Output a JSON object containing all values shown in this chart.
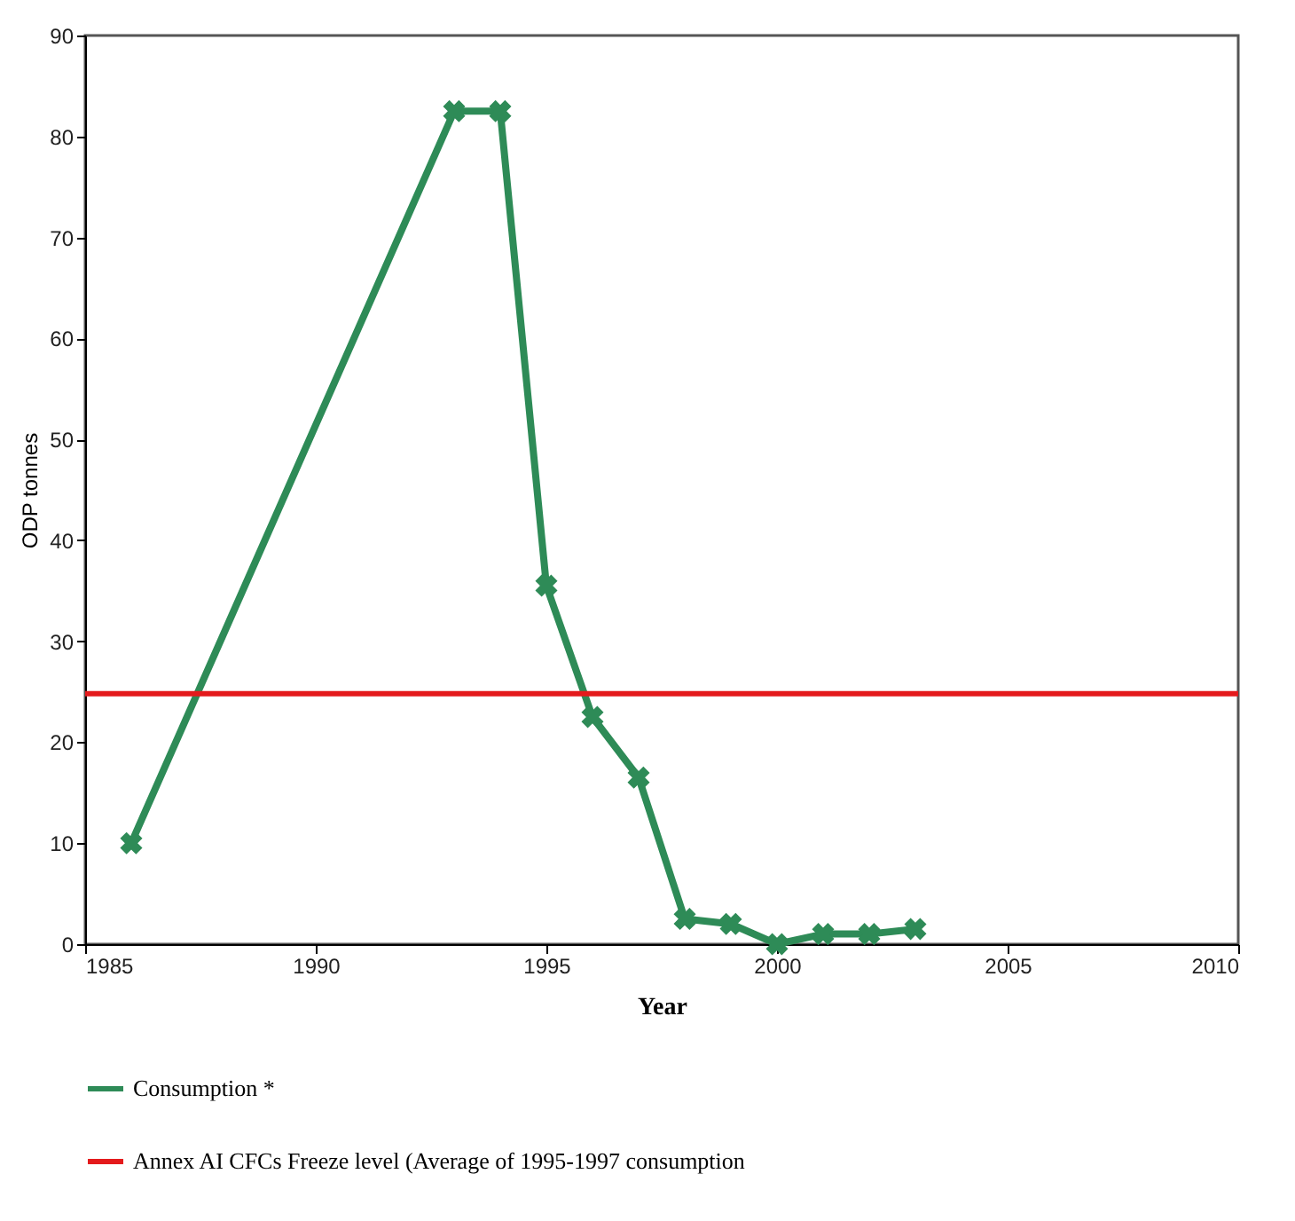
{
  "chart_data": {
    "type": "line",
    "xlabel": "Year",
    "ylabel": "ODP tonnes",
    "x": [
      1986,
      1993,
      1994,
      1995,
      1996,
      1997,
      1998,
      1999,
      2000,
      2001,
      2002,
      2003
    ],
    "series": [
      {
        "name": "Consumption *",
        "color": "#2e8b57",
        "values": [
          10,
          82.5,
          82.5,
          35.5,
          22.5,
          16.5,
          2.5,
          2,
          0,
          1,
          1,
          1.5
        ]
      }
    ],
    "ref_lines": [
      {
        "axis": "y",
        "value": 24.8,
        "label": "Annex AI CFCs Freeze level (Average of 1995-1997 consumption",
        "color": "#e41a1c",
        "line_style": "solid"
      }
    ],
    "xlim": [
      1985,
      2010
    ],
    "xticks": [
      1985,
      1990,
      1995,
      2000,
      2005,
      2010
    ],
    "ylim": [
      0,
      90
    ],
    "yticks": [
      0,
      10,
      20,
      30,
      40,
      50,
      60,
      70,
      80,
      90
    ],
    "grid": false,
    "legend": "bottom",
    "marker": "cross",
    "line_style": "solid"
  }
}
